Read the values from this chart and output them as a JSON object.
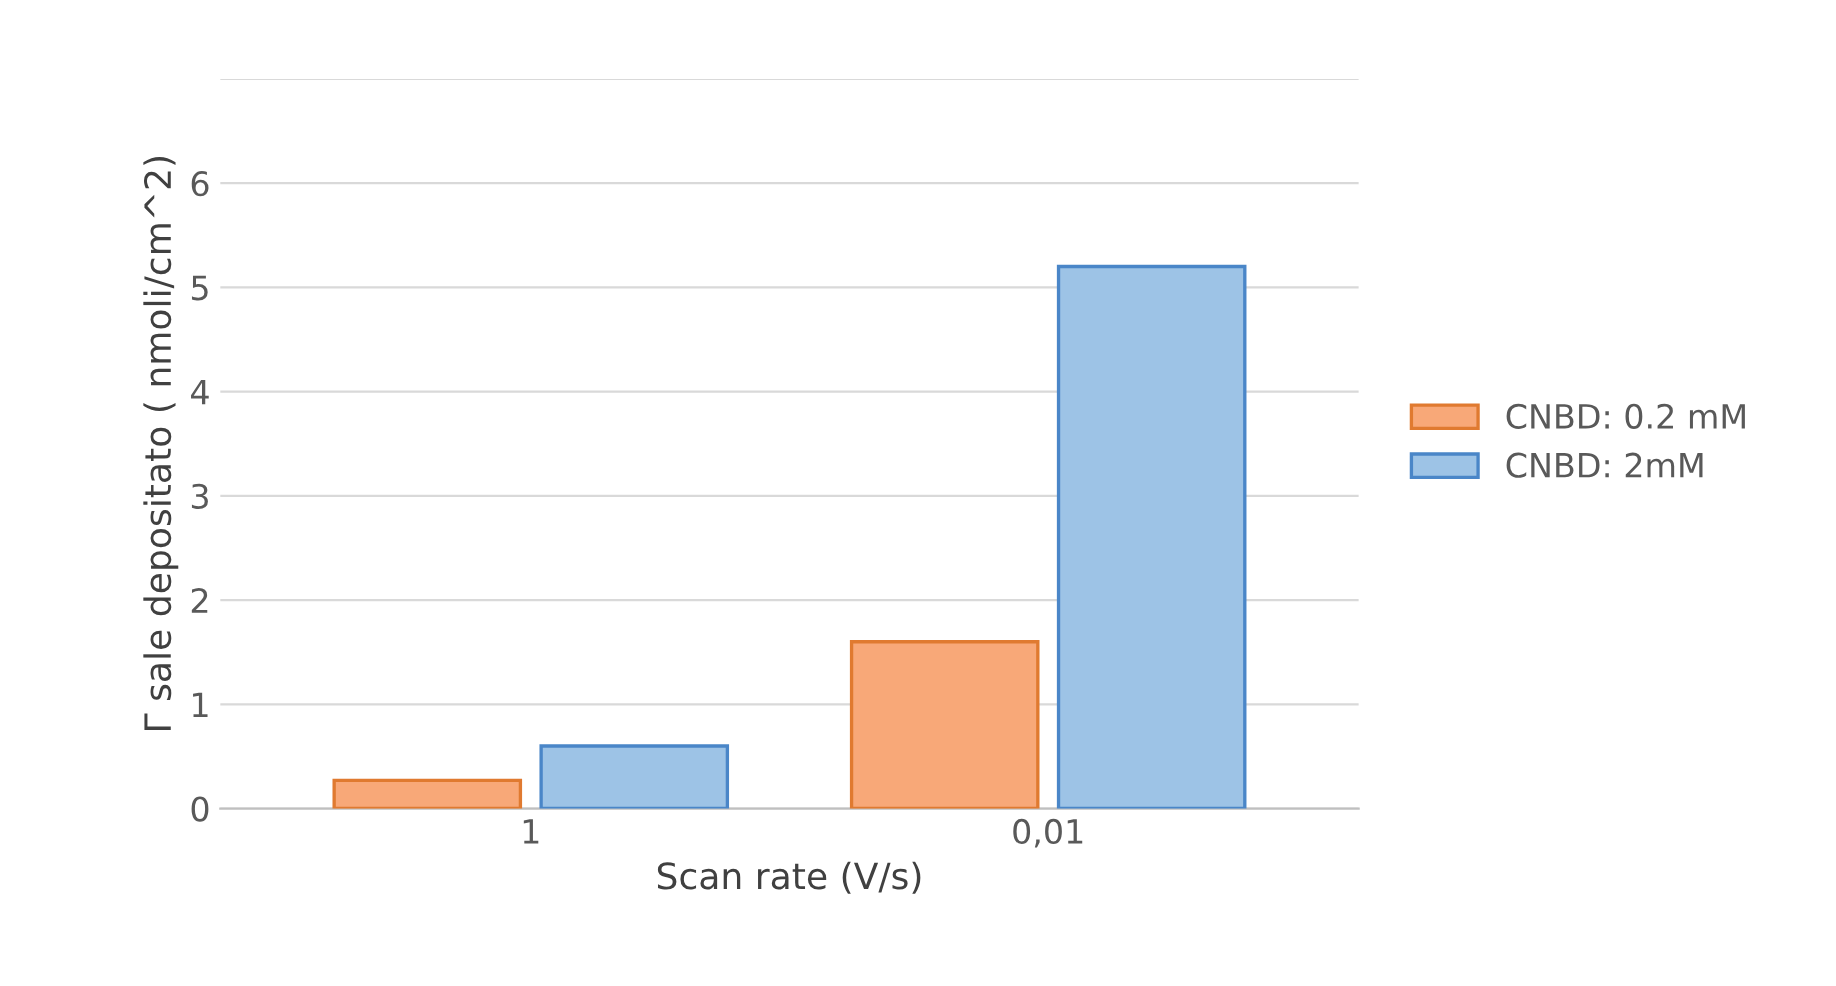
{
  "chart_data": {
    "type": "bar",
    "xlabel": "Scan rate (V/s)",
    "ylabel": "Γ sale depositato ( nmoli/cm^2)",
    "categories": [
      "1",
      "0,01"
    ],
    "series": [
      {
        "name": "CNBD: 0.2 mM",
        "color": "#f8a878",
        "values": [
          0.27,
          1.6
        ]
      },
      {
        "name": "CNBD: 2mM",
        "color": "#9dc3e6",
        "values": [
          0.6,
          5.2
        ]
      }
    ],
    "ylim": [
      0,
      7
    ],
    "yticks": [
      0,
      1,
      2,
      3,
      4,
      5,
      6,
      {
        "value": 7,
        "label": null
      }
    ],
    "grid": "y",
    "legend": "right"
  }
}
